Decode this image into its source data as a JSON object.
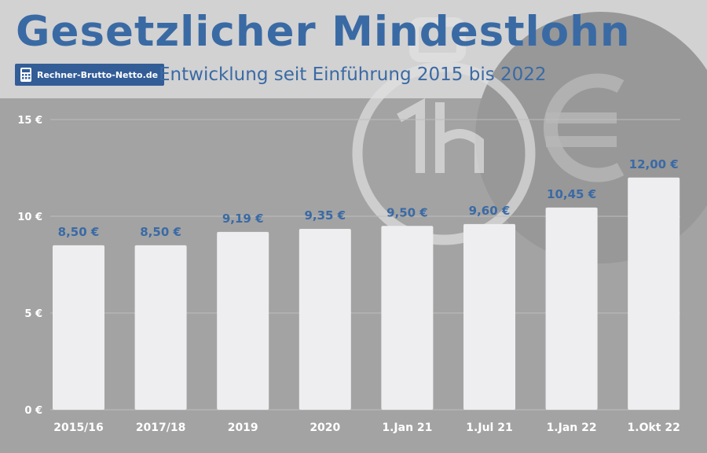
{
  "header": {
    "title": "Gesetzlicher Mindestlohn",
    "logo_text": "Rechner-Brutto-Netto.de",
    "subtitle": "Entwicklung seit Einführung 2015 bis 2022"
  },
  "colors": {
    "accent": "#3a6aa4",
    "bar": "#eeeef0",
    "plot_bg": "#a3a3a3",
    "header_bg": "#d2d2d2"
  },
  "chart_data": {
    "type": "bar",
    "categories": [
      "2015/16",
      "2017/18",
      "2019",
      "2020",
      "1.Jan 21",
      "1.Jul 21",
      "1.Jan 22",
      "1.Okt 22"
    ],
    "values": [
      8.5,
      8.5,
      9.19,
      9.35,
      9.5,
      9.6,
      10.45,
      12.0
    ],
    "value_labels": [
      "8,50 €",
      "8,50 €",
      "9,19 €",
      "9,35 €",
      "9,50 €",
      "9,60 €",
      "10,45 €",
      "12,00 €"
    ],
    "yticks": [
      0,
      5,
      10,
      15
    ],
    "ytick_labels": [
      "0 €",
      "5 €",
      "10 €",
      "15 €"
    ],
    "ylim": [
      0,
      15
    ],
    "grid": true,
    "legend": "none"
  }
}
